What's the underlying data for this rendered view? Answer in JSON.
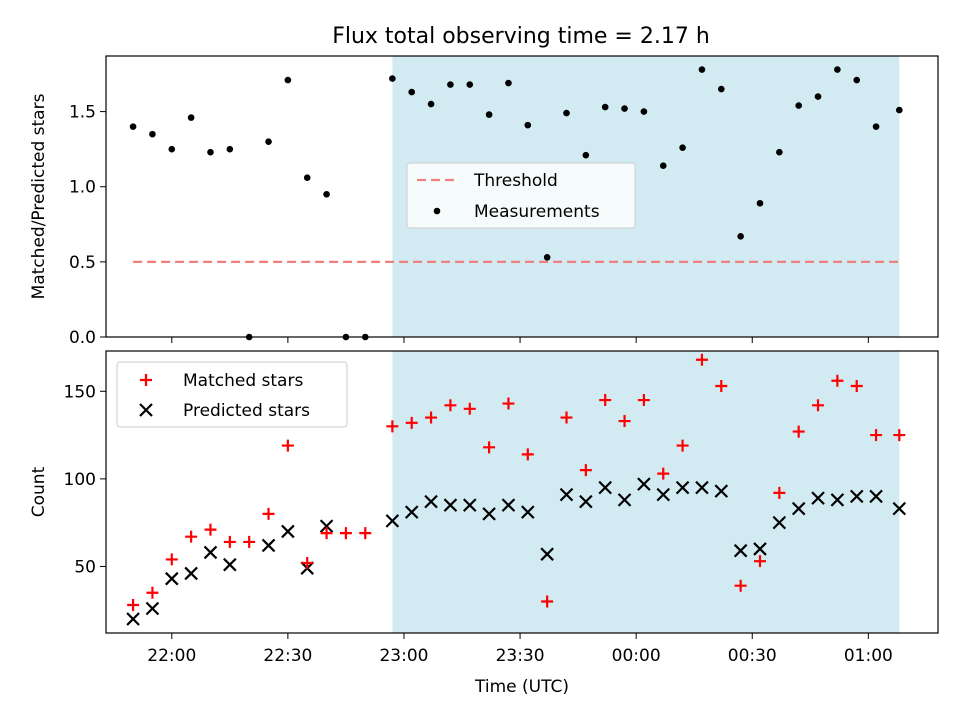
{
  "title": "Flux total observing time = 2.17 h",
  "colors": {
    "shade": "#add8e6",
    "threshold": "#f08080",
    "matched": "#ff0000",
    "predicted": "#000000",
    "measurement": "#000000"
  },
  "chart_data": [
    {
      "type": "scatter",
      "ylabel": "Matched/Predicted stars",
      "ylim": [
        0,
        1.87
      ],
      "yticks": [
        "0.0",
        "0.5",
        "1.0",
        "1.5"
      ],
      "ytick_values": [
        0,
        0.5,
        1.0,
        1.5
      ],
      "xlim": [
        "21:43",
        "01:18"
      ],
      "shaded_span": [
        "22:57",
        "01:08"
      ],
      "legend": {
        "position": "center",
        "entries": [
          "Threshold",
          "Measurements"
        ]
      },
      "threshold": {
        "name": "Threshold",
        "value": 0.5,
        "x_range": [
          "21:50",
          "01:08"
        ]
      },
      "series": [
        {
          "name": "Measurements",
          "points": [
            [
              "21:50",
              1.4
            ],
            [
              "21:55",
              1.35
            ],
            [
              "22:00",
              1.25
            ],
            [
              "22:05",
              1.46
            ],
            [
              "22:10",
              1.23
            ],
            [
              "22:15",
              1.25
            ],
            [
              "22:20",
              0.0
            ],
            [
              "22:25",
              1.3
            ],
            [
              "22:30",
              1.71
            ],
            [
              "22:35",
              1.06
            ],
            [
              "22:40",
              0.95
            ],
            [
              "22:45",
              0.0
            ],
            [
              "22:50",
              0.0
            ],
            [
              "22:57",
              1.72
            ],
            [
              "23:02",
              1.63
            ],
            [
              "23:07",
              1.55
            ],
            [
              "23:12",
              1.68
            ],
            [
              "23:17",
              1.68
            ],
            [
              "23:22",
              1.48
            ],
            [
              "23:27",
              1.69
            ],
            [
              "23:32",
              1.41
            ],
            [
              "23:37",
              0.53
            ],
            [
              "23:42",
              1.49
            ],
            [
              "23:47",
              1.21
            ],
            [
              "23:52",
              1.53
            ],
            [
              "23:57",
              1.52
            ],
            [
              "00:02",
              1.5
            ],
            [
              "00:07",
              1.14
            ],
            [
              "00:12",
              1.26
            ],
            [
              "00:17",
              1.78
            ],
            [
              "00:22",
              1.65
            ],
            [
              "00:27",
              0.67
            ],
            [
              "00:32",
              0.89
            ],
            [
              "00:37",
              1.23
            ],
            [
              "00:42",
              1.54
            ],
            [
              "00:47",
              1.6
            ],
            [
              "00:52",
              1.78
            ],
            [
              "00:57",
              1.71
            ],
            [
              "01:02",
              1.4
            ],
            [
              "01:08",
              1.51
            ]
          ]
        }
      ]
    },
    {
      "type": "scatter",
      "ylabel": "Count",
      "xlabel": "Time (UTC)",
      "ylim": [
        12,
        173
      ],
      "yticks": [
        "50",
        "100",
        "150"
      ],
      "ytick_values": [
        50,
        100,
        150
      ],
      "xticks": [
        "22:00",
        "22:30",
        "23:00",
        "23:30",
        "00:00",
        "00:30",
        "01:00"
      ],
      "xlim": [
        "21:43",
        "01:18"
      ],
      "shaded_span": [
        "22:57",
        "01:08"
      ],
      "legend": {
        "position": "upper left",
        "entries": [
          "Matched stars",
          "Predicted stars"
        ]
      },
      "series": [
        {
          "name": "Matched stars",
          "marker": "plus",
          "points": [
            [
              "21:50",
              28
            ],
            [
              "21:55",
              35
            ],
            [
              "22:00",
              54
            ],
            [
              "22:05",
              67
            ],
            [
              "22:10",
              71
            ],
            [
              "22:15",
              64
            ],
            [
              "22:20",
              64
            ],
            [
              "22:25",
              80
            ],
            [
              "22:30",
              119
            ],
            [
              "22:35",
              52
            ],
            [
              "22:40",
              69
            ],
            [
              "22:45",
              69
            ],
            [
              "22:50",
              69
            ],
            [
              "22:57",
              130
            ],
            [
              "23:02",
              132
            ],
            [
              "23:07",
              135
            ],
            [
              "23:12",
              142
            ],
            [
              "23:17",
              140
            ],
            [
              "23:22",
              118
            ],
            [
              "23:27",
              143
            ],
            [
              "23:32",
              114
            ],
            [
              "23:37",
              30
            ],
            [
              "23:42",
              135
            ],
            [
              "23:47",
              105
            ],
            [
              "23:52",
              145
            ],
            [
              "23:57",
              133
            ],
            [
              "00:02",
              145
            ],
            [
              "00:07",
              103
            ],
            [
              "00:12",
              119
            ],
            [
              "00:17",
              168
            ],
            [
              "00:22",
              153
            ],
            [
              "00:27",
              39
            ],
            [
              "00:32",
              53
            ],
            [
              "00:37",
              92
            ],
            [
              "00:42",
              127
            ],
            [
              "00:47",
              142
            ],
            [
              "00:52",
              156
            ],
            [
              "00:57",
              153
            ],
            [
              "01:02",
              125
            ],
            [
              "01:08",
              125
            ]
          ]
        },
        {
          "name": "Predicted stars",
          "marker": "x",
          "points": [
            [
              "21:50",
              20
            ],
            [
              "21:55",
              26
            ],
            [
              "22:00",
              43
            ],
            [
              "22:05",
              46
            ],
            [
              "22:10",
              58
            ],
            [
              "22:15",
              51
            ],
            [
              "22:25",
              62
            ],
            [
              "22:30",
              70
            ],
            [
              "22:35",
              49
            ],
            [
              "22:40",
              73
            ],
            [
              "22:57",
              76
            ],
            [
              "23:02",
              81
            ],
            [
              "23:07",
              87
            ],
            [
              "23:12",
              85
            ],
            [
              "23:17",
              85
            ],
            [
              "23:22",
              80
            ],
            [
              "23:27",
              85
            ],
            [
              "23:32",
              81
            ],
            [
              "23:37",
              57
            ],
            [
              "23:42",
              91
            ],
            [
              "23:47",
              87
            ],
            [
              "23:52",
              95
            ],
            [
              "23:57",
              88
            ],
            [
              "00:02",
              97
            ],
            [
              "00:07",
              91
            ],
            [
              "00:12",
              95
            ],
            [
              "00:17",
              95
            ],
            [
              "00:22",
              93
            ],
            [
              "00:27",
              59
            ],
            [
              "00:32",
              60
            ],
            [
              "00:37",
              75
            ],
            [
              "00:42",
              83
            ],
            [
              "00:47",
              89
            ],
            [
              "00:52",
              88
            ],
            [
              "00:57",
              90
            ],
            [
              "01:02",
              90
            ],
            [
              "01:08",
              83
            ]
          ]
        }
      ]
    }
  ]
}
